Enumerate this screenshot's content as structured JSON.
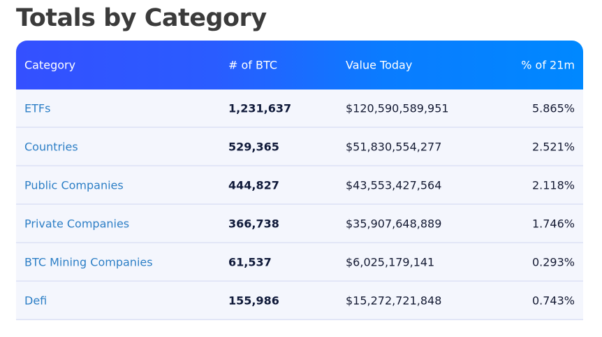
{
  "title": "Totals by Category",
  "colors": {
    "header_gradient_start": "#3450ff",
    "header_gradient_end": "#0088ff",
    "link": "#2d7fc6",
    "row_bg": "#f4f6fd"
  },
  "table": {
    "headers": [
      "Category",
      "# of BTC",
      "Value Today",
      "% of 21m"
    ],
    "rows": [
      {
        "category": "ETFs",
        "btc": "1,231,637",
        "value": "$120,590,589,951",
        "pct": "5.865%"
      },
      {
        "category": "Countries",
        "btc": "529,365",
        "value": "$51,830,554,277",
        "pct": "2.521%"
      },
      {
        "category": "Public Companies",
        "btc": "444,827",
        "value": "$43,553,427,564",
        "pct": "2.118%"
      },
      {
        "category": "Private Companies",
        "btc": "366,738",
        "value": "$35,907,648,889",
        "pct": "1.746%"
      },
      {
        "category": "BTC Mining Companies",
        "btc": "61,537",
        "value": "$6,025,179,141",
        "pct": "0.293%"
      },
      {
        "category": "Defi",
        "btc": "155,986",
        "value": "$15,272,721,848",
        "pct": "0.743%"
      }
    ]
  }
}
